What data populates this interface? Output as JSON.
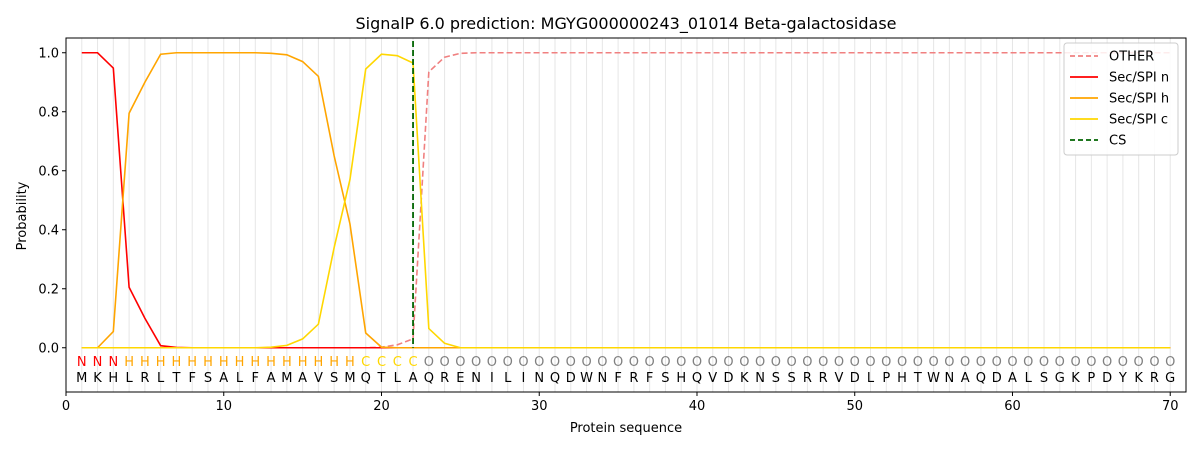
{
  "chart_data": {
    "type": "line",
    "title": "SignalP 6.0 prediction: MGYG000000243_01014 Beta-galactosidase",
    "xlabel": "Protein sequence",
    "ylabel": "Probability",
    "xlim": [
      0,
      71
    ],
    "ylim": [
      -0.15,
      1.05
    ],
    "xticks": [
      0,
      10,
      20,
      30,
      40,
      50,
      60,
      70
    ],
    "yticks": [
      0.0,
      0.2,
      0.4,
      0.6,
      0.8,
      1.0
    ],
    "ytick_labels": [
      "0.0",
      "0.2",
      "0.4",
      "0.6",
      "0.8",
      "1.0"
    ],
    "grid": "vertical lines at each residue",
    "legend_position": "top-right",
    "x": [
      1,
      2,
      3,
      4,
      5,
      6,
      7,
      8,
      9,
      10,
      11,
      12,
      13,
      14,
      15,
      16,
      17,
      18,
      19,
      20,
      21,
      22,
      23,
      24,
      25,
      26,
      27,
      28,
      29,
      30,
      31,
      32,
      33,
      34,
      35,
      36,
      37,
      38,
      39,
      40,
      41,
      42,
      43,
      44,
      45,
      46,
      47,
      48,
      49,
      50,
      51,
      52,
      53,
      54,
      55,
      56,
      57,
      58,
      59,
      60,
      61,
      62,
      63,
      64,
      65,
      66,
      67,
      68,
      69,
      70
    ],
    "sequence": [
      "M",
      "K",
      "H",
      "L",
      "R",
      "L",
      "T",
      "F",
      "S",
      "A",
      "L",
      "F",
      "A",
      "M",
      "A",
      "V",
      "S",
      "M",
      "Q",
      "T",
      "L",
      "A",
      "Q",
      "R",
      "E",
      "N",
      "I",
      "L",
      "I",
      "N",
      "Q",
      "D",
      "W",
      "N",
      "F",
      "R",
      "F",
      "S",
      "H",
      "Q",
      "V",
      "D",
      "K",
      "N",
      "S",
      "S",
      "R",
      "R",
      "V",
      "D",
      "L",
      "P",
      "H",
      "T",
      "W",
      "N",
      "A",
      "Q",
      "D",
      "A",
      "L",
      "S",
      "G",
      "K",
      "P",
      "D",
      "Y",
      "K",
      "R",
      "G"
    ],
    "labels": [
      "N",
      "N",
      "N",
      "H",
      "H",
      "H",
      "H",
      "H",
      "H",
      "H",
      "H",
      "H",
      "H",
      "H",
      "H",
      "H",
      "H",
      "H",
      "C",
      "C",
      "C",
      "C",
      "O",
      "O",
      "O",
      "O",
      "O",
      "O",
      "O",
      "O",
      "O",
      "O",
      "O",
      "O",
      "O",
      "O",
      "O",
      "O",
      "O",
      "O",
      "O",
      "O",
      "O",
      "O",
      "O",
      "O",
      "O",
      "O",
      "O",
      "O",
      "O",
      "O",
      "O",
      "O",
      "O",
      "O",
      "O",
      "O",
      "O",
      "O",
      "O",
      "O",
      "O",
      "O",
      "O",
      "O",
      "O",
      "O",
      "O",
      "O"
    ],
    "label_colors": {
      "N": "#ff0000",
      "H": "#ffa500",
      "C": "#ffd700",
      "O": "#808080"
    },
    "series": [
      {
        "name": "OTHER",
        "color": "#f08080",
        "dash": true,
        "values": [
          0,
          0,
          0,
          0,
          0,
          0,
          0,
          0,
          0,
          0,
          0,
          0,
          0,
          0,
          0,
          0,
          0,
          0,
          0,
          0.002,
          0.01,
          0.03,
          0.935,
          0.985,
          0.998,
          1,
          1,
          1,
          1,
          1,
          1,
          1,
          1,
          1,
          1,
          1,
          1,
          1,
          1,
          1,
          1,
          1,
          1,
          1,
          1,
          1,
          1,
          1,
          1,
          1,
          1,
          1,
          1,
          1,
          1,
          1,
          1,
          1,
          1,
          1,
          1,
          1,
          1,
          1,
          1,
          1,
          1,
          1,
          1,
          1
        ]
      },
      {
        "name": "Sec/SPI n",
        "color": "#ff0000",
        "dash": false,
        "values": [
          1,
          1,
          0.948,
          0.205,
          0.1,
          0.007,
          0.001,
          0,
          0,
          0,
          0,
          0,
          0,
          0,
          0,
          0,
          0,
          0,
          0,
          0,
          0,
          0,
          0,
          0,
          0,
          0,
          0,
          0,
          0,
          0,
          0,
          0,
          0,
          0,
          0,
          0,
          0,
          0,
          0,
          0,
          0,
          0,
          0,
          0,
          0,
          0,
          0,
          0,
          0,
          0,
          0,
          0,
          0,
          0,
          0,
          0,
          0,
          0,
          0,
          0,
          0,
          0,
          0,
          0,
          0,
          0,
          0,
          0,
          0,
          0
        ]
      },
      {
        "name": "Sec/SPI h",
        "color": "#ffa500",
        "dash": false,
        "values": [
          0,
          0,
          0.055,
          0.795,
          0.9,
          0.995,
          1,
          1,
          1,
          1,
          1,
          1,
          0.998,
          0.993,
          0.97,
          0.92,
          0.65,
          0.42,
          0.05,
          0.002,
          0,
          0,
          0,
          0,
          0,
          0,
          0,
          0,
          0,
          0,
          0,
          0,
          0,
          0,
          0,
          0,
          0,
          0,
          0,
          0,
          0,
          0,
          0,
          0,
          0,
          0,
          0,
          0,
          0,
          0,
          0,
          0,
          0,
          0,
          0,
          0,
          0,
          0,
          0,
          0,
          0,
          0,
          0,
          0,
          0,
          0,
          0,
          0,
          0,
          0
        ]
      },
      {
        "name": "Sec/SPI c",
        "color": "#ffd700",
        "dash": false,
        "values": [
          0,
          0,
          0,
          0,
          0,
          0,
          0,
          0,
          0,
          0,
          0,
          0,
          0.002,
          0.008,
          0.03,
          0.08,
          0.34,
          0.57,
          0.945,
          0.995,
          0.99,
          0.965,
          0.065,
          0.015,
          0,
          0,
          0,
          0,
          0,
          0,
          0,
          0,
          0,
          0,
          0,
          0,
          0,
          0,
          0,
          0,
          0,
          0,
          0,
          0,
          0,
          0,
          0,
          0,
          0,
          0,
          0,
          0,
          0,
          0,
          0,
          0,
          0,
          0,
          0,
          0,
          0,
          0,
          0,
          0,
          0,
          0,
          0,
          0,
          0,
          0
        ]
      }
    ],
    "cleavage_site": {
      "name": "CS",
      "x": 22,
      "color": "#006400"
    }
  }
}
